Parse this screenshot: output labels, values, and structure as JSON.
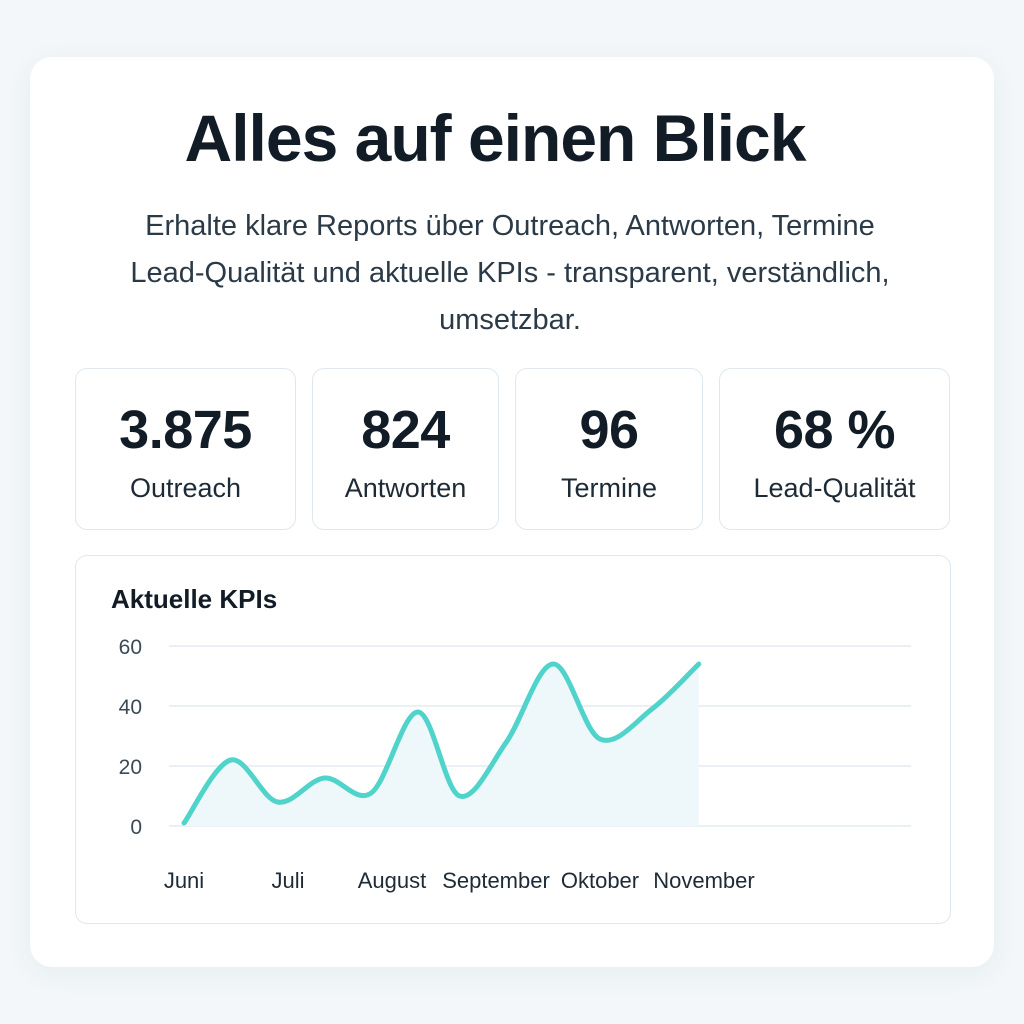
{
  "header": {
    "title": "Alles auf einen Blick",
    "subtitle_lines": [
      "Erhalte klare Reports über Outreach, Antworten, Termine",
      "Lead-Qualität und aktuelle KPIs - transparent, verständlich,",
      "umsetzbar."
    ]
  },
  "kpis": [
    {
      "value": "3.875",
      "label": "Outreach"
    },
    {
      "value": "824",
      "label": "Antworten"
    },
    {
      "value": "96",
      "label": "Termine"
    },
    {
      "value": "68 %",
      "label": "Lead-Qualität"
    }
  ],
  "colors": {
    "line": "#4fd3cb",
    "area": "#eef7fa",
    "grid": "#dde7ec",
    "text": "#121c27"
  },
  "chart_data": {
    "type": "line",
    "title": "Aktuelle KPIs",
    "xlabel": "",
    "ylabel": "",
    "ylim": [
      0,
      60
    ],
    "yticks": [
      0,
      20,
      40,
      60
    ],
    "categories": [
      "Juni",
      "Juli",
      "August",
      "September",
      "Oktober",
      "November"
    ],
    "grid": true,
    "series": [
      {
        "name": "KPIs",
        "x": [
          0,
          0.45,
          0.9,
          1.35,
          1.8,
          2.25,
          2.65,
          3.1,
          3.55,
          4.0,
          4.5,
          4.95
        ],
        "values": [
          1,
          22,
          8,
          16,
          11,
          38,
          10,
          28,
          54,
          29,
          39,
          54
        ]
      }
    ]
  }
}
